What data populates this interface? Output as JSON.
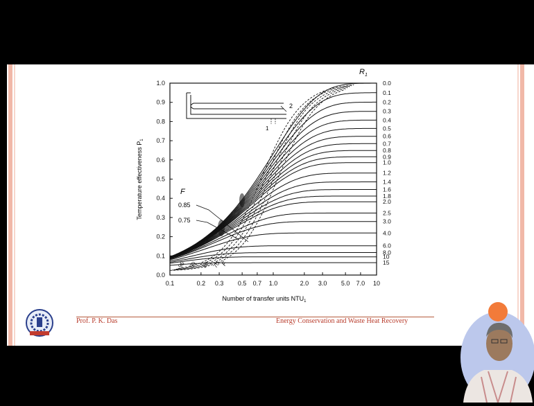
{
  "footer": {
    "presenter": "Prof. P. K. Das",
    "course": "Energy Conservation and Waste Heat Recovery"
  },
  "colors": {
    "accent": "#b83a2a",
    "slide_edge": "#f1b8a8"
  },
  "chart_data": {
    "type": "line",
    "xlabel": "Number of transfer units NTU",
    "xlabel_sub": "1",
    "ylabel": "Temperature effectiveness P",
    "ylabel_sub": "1",
    "xscale": "log",
    "xlim": [
      0.1,
      10
    ],
    "ylim": [
      0.0,
      1.0
    ],
    "x_ticks": [
      "0.1",
      "0.2",
      "0.3",
      "0.5",
      "0.7",
      "1.0",
      "2.0",
      "3.0",
      "5.0",
      "7.0",
      "10"
    ],
    "x_tick_values": [
      0.1,
      0.2,
      0.3,
      0.5,
      0.7,
      1.0,
      2.0,
      3.0,
      5.0,
      7.0,
      10
    ],
    "y_ticks": [
      "0.0",
      "0.1",
      "0.2",
      "0.3",
      "0.4",
      "0.5",
      "0.6",
      "0.7",
      "0.8",
      "0.9",
      "1.0"
    ],
    "y_tick_values": [
      0,
      0.1,
      0.2,
      0.3,
      0.4,
      0.5,
      0.6,
      0.7,
      0.8,
      0.9,
      1.0
    ],
    "right_axis_title": "R",
    "right_axis_title_sub": "1",
    "r_labels": [
      "0.0",
      "0.1",
      "0.2",
      "0.3",
      "0.4",
      "0.5",
      "0.6",
      "0.7",
      "0.8",
      "0.9",
      "1.0",
      "1.2",
      "1.4",
      "1.6",
      "1.8",
      "2.0",
      "2.5",
      "3.0",
      "4.0",
      "6.0",
      "8.0",
      "10",
      "15"
    ],
    "r_values": [
      0,
      0.1,
      0.2,
      0.3,
      0.4,
      0.5,
      0.6,
      0.7,
      0.8,
      0.9,
      1.0,
      1.2,
      1.4,
      1.6,
      1.8,
      2.0,
      2.5,
      3.0,
      4.0,
      6.0,
      8.0,
      10,
      15
    ],
    "f_title": "F",
    "f_labels": [
      "0.85",
      "0.75"
    ],
    "f_bottom_labels": [
      "95",
      "90",
      "80",
      "70"
    ],
    "f_bottom_end": "F",
    "f_bottom_values": [
      0.95,
      0.9,
      0.8,
      0.7
    ],
    "inset_labels": [
      "2",
      "1"
    ]
  }
}
